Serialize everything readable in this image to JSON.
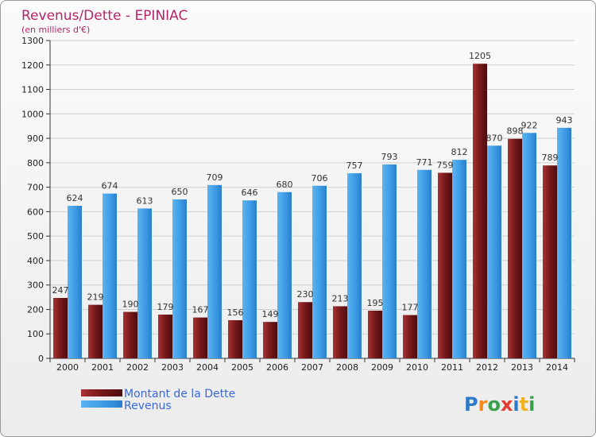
{
  "chart_data": {
    "type": "bar",
    "title": "Revenus/Dette - EPINIAC",
    "subtitle": "(en milliers d'€)",
    "categories": [
      "2000",
      "2001",
      "2002",
      "2003",
      "2004",
      "2005",
      "2006",
      "2007",
      "2008",
      "2009",
      "2010",
      "2011",
      "2012",
      "2013",
      "2014"
    ],
    "series": [
      {
        "name": "Montant de la Dette",
        "color": "#7a1a1c",
        "values": [
          247,
          219,
          190,
          179,
          167,
          156,
          149,
          230,
          213,
          195,
          177,
          759,
          1205,
          898,
          789
        ]
      },
      {
        "name": "Revenus",
        "color": "#3d9be5",
        "values": [
          624,
          674,
          613,
          650,
          709,
          646,
          680,
          706,
          757,
          793,
          771,
          812,
          870,
          922,
          943
        ]
      }
    ],
    "ylim": [
      0,
      1300
    ],
    "yticks": [
      0,
      100,
      200,
      300,
      400,
      500,
      600,
      700,
      800,
      900,
      1000,
      1100,
      1200,
      1300
    ],
    "grid": true,
    "legend_position": "bottom-left"
  },
  "logo": {
    "text": "Proxiti"
  }
}
